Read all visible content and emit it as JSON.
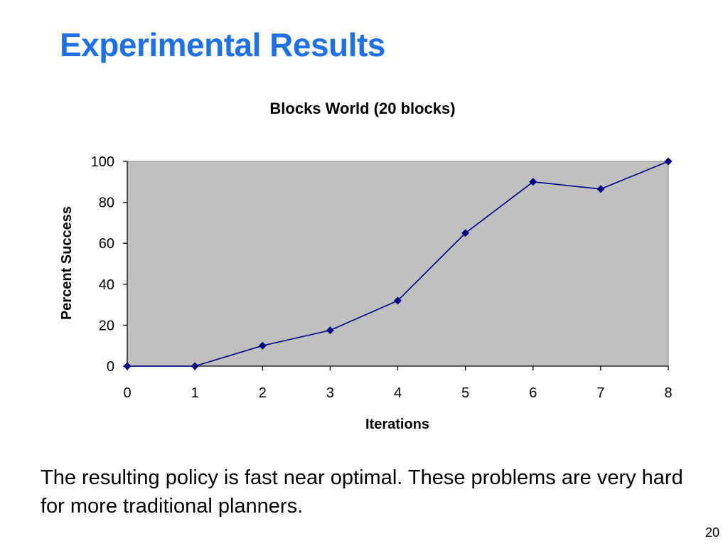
{
  "slide": {
    "title": "Experimental Results",
    "caption": "The resulting policy is fast near optimal. These problems are very hard for more traditional planners.",
    "page_number": "20",
    "title_color": "#1f6fe5"
  },
  "chart_data": {
    "type": "line",
    "title": "Blocks World (20 blocks)",
    "xlabel": "Iterations",
    "ylabel": "Percent Success",
    "x": [
      0,
      1,
      2,
      3,
      4,
      5,
      6,
      7,
      8
    ],
    "series": [
      {
        "values": [
          0,
          0,
          10,
          17.5,
          32,
          65,
          90,
          86.5,
          100
        ]
      }
    ],
    "xlim": [
      0,
      8
    ],
    "ylim": [
      0,
      100
    ],
    "x_ticks": [
      0,
      1,
      2,
      3,
      4,
      5,
      6,
      7,
      8
    ],
    "y_ticks": [
      0,
      20,
      40,
      60,
      80,
      100
    ],
    "marker": "diamond",
    "grid": false,
    "legend": "none",
    "colors": {
      "plot_background": "#c0c0c0",
      "line": "#000080",
      "marker": "#000080"
    }
  }
}
